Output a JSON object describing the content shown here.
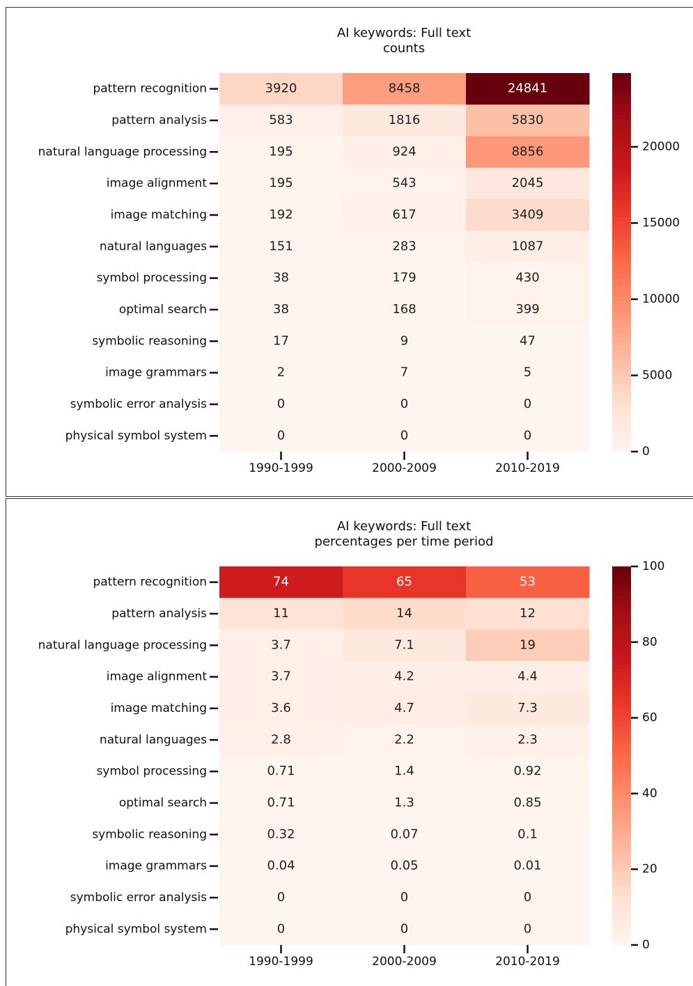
{
  "chart_data": [
    {
      "type": "heatmap",
      "title": "AI keywords: Full text\ncounts",
      "colormap": "Reds",
      "rows": [
        "pattern recognition",
        "pattern analysis",
        "natural language processing",
        "image alignment",
        "image matching",
        "natural languages",
        "symbol processing",
        "optimal search",
        "symbolic reasoning",
        "image grammars",
        "symbolic error analysis",
        "physical symbol system"
      ],
      "columns": [
        "1990-1999",
        "2000-2009",
        "2010-2019"
      ],
      "values": [
        [
          3920,
          8458,
          24841
        ],
        [
          583,
          1816,
          5830
        ],
        [
          195,
          924,
          8856
        ],
        [
          195,
          543,
          2045
        ],
        [
          192,
          617,
          3409
        ],
        [
          151,
          283,
          1087
        ],
        [
          38,
          179,
          430
        ],
        [
          38,
          168,
          399
        ],
        [
          17,
          9,
          47
        ],
        [
          2,
          7,
          5
        ],
        [
          0,
          0,
          0
        ],
        [
          0,
          0,
          0
        ]
      ],
      "clim": [
        0,
        24841
      ],
      "cticks": [
        0,
        5000,
        10000,
        15000,
        20000
      ]
    },
    {
      "type": "heatmap",
      "title": "AI keywords: Full text\npercentages per time period",
      "colormap": "Reds",
      "rows": [
        "pattern recognition",
        "pattern analysis",
        "natural language processing",
        "image alignment",
        "image matching",
        "natural languages",
        "symbol processing",
        "optimal search",
        "symbolic reasoning",
        "image grammars",
        "symbolic error analysis",
        "physical symbol system"
      ],
      "columns": [
        "1990-1999",
        "2000-2009",
        "2010-2019"
      ],
      "values": [
        [
          74,
          65,
          53
        ],
        [
          11,
          14,
          12
        ],
        [
          3.7,
          7.1,
          19
        ],
        [
          3.7,
          4.2,
          4.4
        ],
        [
          3.6,
          4.7,
          7.3
        ],
        [
          2.8,
          2.2,
          2.3
        ],
        [
          0.71,
          1.4,
          0.92
        ],
        [
          0.71,
          1.3,
          0.85
        ],
        [
          0.32,
          0.07,
          0.1
        ],
        [
          0.04,
          0.05,
          0.01
        ],
        [
          0,
          0,
          0
        ],
        [
          0,
          0,
          0
        ]
      ],
      "clim": [
        0,
        100
      ],
      "cticks": [
        0,
        20,
        40,
        60,
        80,
        100
      ]
    }
  ]
}
